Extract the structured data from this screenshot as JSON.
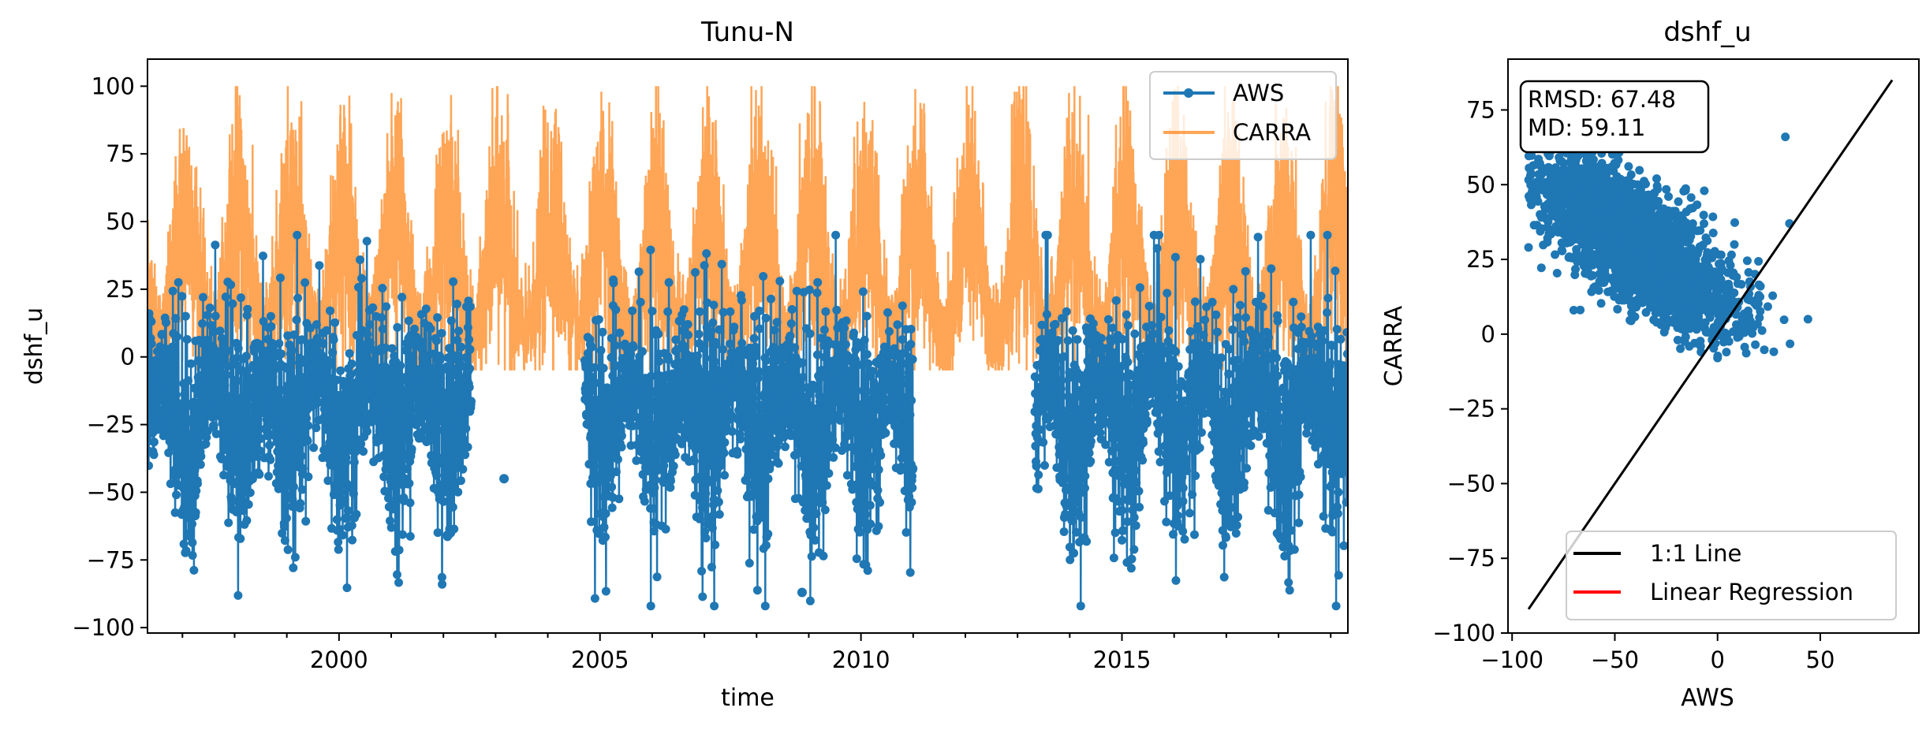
{
  "colors": {
    "aws": "#1f77b4",
    "carra": "#ff7f0e",
    "one_to_one": "#000000",
    "regression": "#ff0000"
  },
  "chart_data": [
    {
      "type": "line",
      "title": "Tunu-N",
      "xlabel": "time",
      "ylabel": "dshf_u",
      "xlim": [
        "1996-05-01",
        "2019-05-01"
      ],
      "ylim": [
        -102,
        110
      ],
      "xticks": [
        "2000",
        "2005",
        "2010",
        "2015"
      ],
      "yticks": [
        "100",
        "75",
        "50",
        "25",
        "0",
        "−25",
        "−50",
        "−75",
        "−100"
      ],
      "grid": false,
      "legend": "top-right",
      "series": [
        {
          "name": "AWS",
          "style": "line-with-markers",
          "gaps": [
            [
              "2002-07-15",
              "2004-09-15"
            ],
            [
              "2011-01-01",
              "2013-05-01"
            ]
          ],
          "outliers": [
            {
              "x": "2003-03-01",
              "y": -45
            },
            {
              "x": "2008-11-15",
              "y": -87
            },
            {
              "x": "2019-04-20",
              "y": -24
            }
          ],
          "seasonal_range": {
            "min": -92,
            "max": 45,
            "winter_mean": -35,
            "summer_mean": -8
          }
        },
        {
          "name": "CARRA",
          "style": "line",
          "seasonal_range": {
            "min": -5,
            "max": 100,
            "winter_mean": 52,
            "summer_mean": 8
          }
        }
      ]
    },
    {
      "type": "scatter",
      "title": "dshf_u",
      "xlabel": "AWS",
      "ylabel": "CARRA",
      "xlim": [
        -102,
        98
      ],
      "ylim": [
        -100,
        92
      ],
      "xticks": [
        "−100",
        "−50",
        "0",
        "50"
      ],
      "yticks": [
        "75",
        "50",
        "25",
        "0",
        "−25",
        "−50",
        "−75",
        "−100"
      ],
      "grid": false,
      "legend": "bottom-right",
      "annotation": {
        "line1": "RMSD: 67.48",
        "line2": "MD: 59.11"
      },
      "cloud": {
        "x_range": [
          -92,
          45
        ],
        "y_range": [
          -8,
          66
        ],
        "center": [
          -40,
          30
        ],
        "correlation": "negative",
        "extreme_points": [
          [
            33,
            66
          ],
          [
            35,
            37
          ],
          [
            -92,
            29
          ],
          [
            -70,
            8
          ],
          [
            0,
            -8
          ],
          [
            44,
            5
          ]
        ]
      },
      "series": [
        {
          "name": "1:1 Line",
          "x": [
            -92,
            85
          ],
          "y": [
            -92,
            85
          ]
        },
        {
          "name": "Linear Regression"
        }
      ]
    }
  ]
}
